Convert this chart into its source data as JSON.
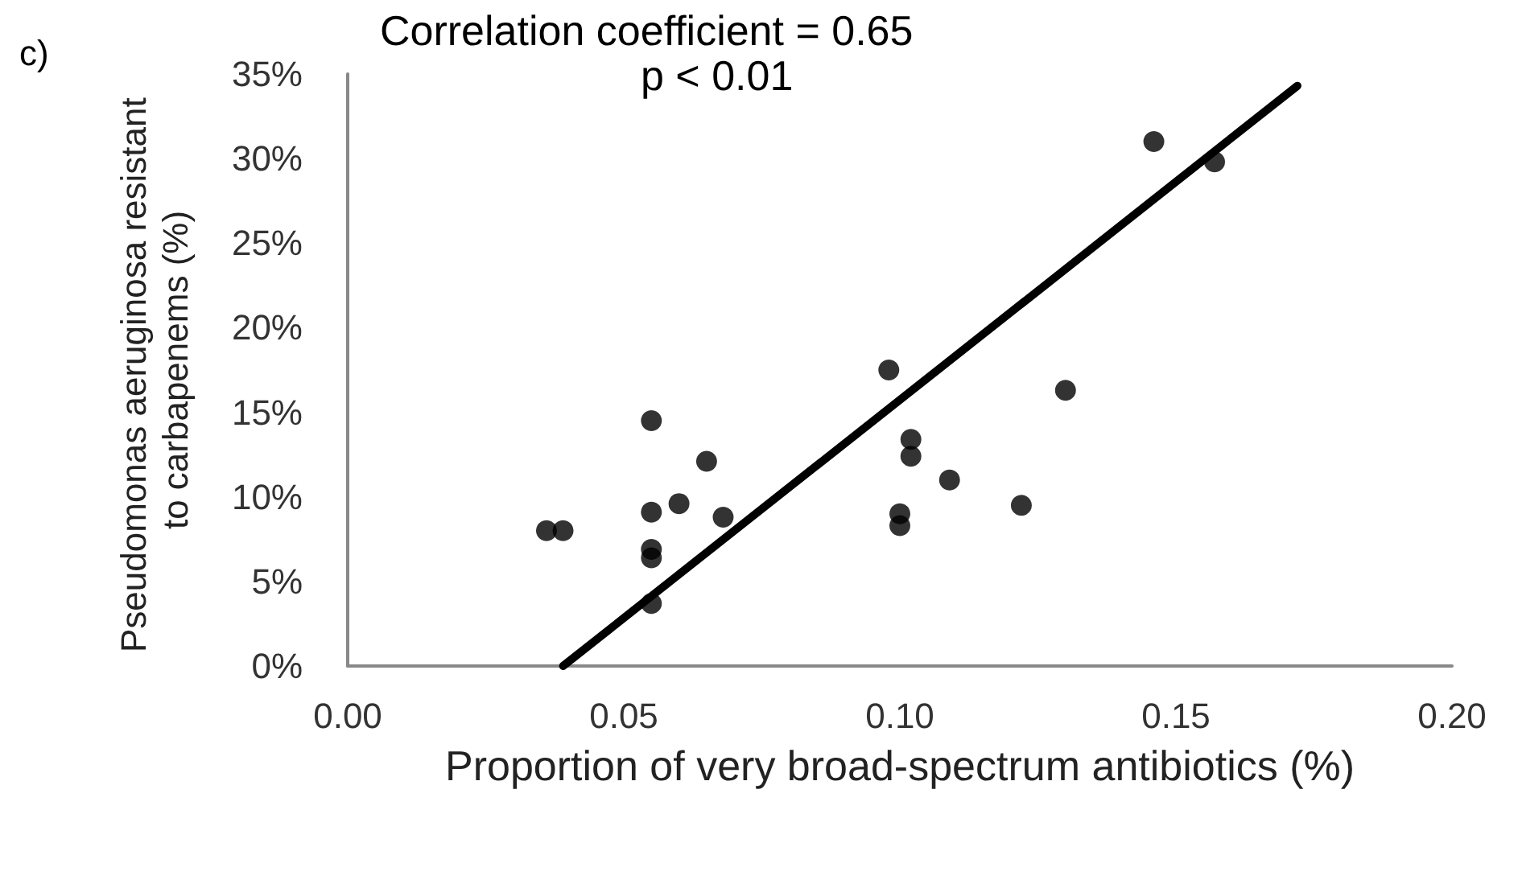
{
  "chart_data": {
    "type": "scatter",
    "xlabel": "Proportion of very broad-spectrum antibiotics (%)",
    "ylabel": "Pseudomonas aeruginosa resistant to carbapenems (%)",
    "annotations": [
      "c)",
      "Correlation coefficient = 0.65",
      "p < 0.01"
    ],
    "series": [
      {
        "color": "#000000",
        "marker": "circle",
        "x": [
          0.036,
          0.039,
          0.055,
          0.055,
          0.055,
          0.055,
          0.055,
          0.06,
          0.065,
          0.068,
          0.098,
          0.1,
          0.1,
          0.102,
          0.102,
          0.109,
          0.122,
          0.13,
          0.146,
          0.157
        ],
        "values": [
          8.0,
          8.0,
          3.7,
          6.4,
          6.9,
          9.1,
          14.5,
          9.6,
          12.1,
          8.8,
          17.5,
          8.3,
          9.0,
          12.4,
          13.4,
          11.0,
          9.5,
          16.3,
          31.0,
          29.8
        ]
      },
      {
        "type": "line",
        "color": "#000000",
        "marker": "none",
        "line_style": "solid",
        "x": [
          0.039,
          0.172
        ],
        "values": [
          0,
          34.3
        ]
      }
    ],
    "xlim": [
      0,
      0.2
    ],
    "xticks": [
      {
        "value": 0,
        "label": "0.00"
      },
      {
        "value": 0.05,
        "label": "0.05"
      },
      {
        "value": 0.1,
        "label": "0.10"
      },
      {
        "value": 0.15,
        "label": "0.15"
      },
      {
        "value": 0.2,
        "label": "0.20"
      }
    ],
    "ylim": [
      0,
      35
    ],
    "yticks": [
      {
        "value": 0,
        "label": "0%"
      },
      {
        "value": 5,
        "label": "5%"
      },
      {
        "value": 10,
        "label": "10%"
      },
      {
        "value": 15,
        "label": "15%"
      },
      {
        "value": 20,
        "label": "20%"
      },
      {
        "value": 25,
        "label": "25%"
      },
      {
        "value": 30,
        "label": "30%"
      },
      {
        "value": 35,
        "label": "35%"
      }
    ],
    "grid": false
  }
}
